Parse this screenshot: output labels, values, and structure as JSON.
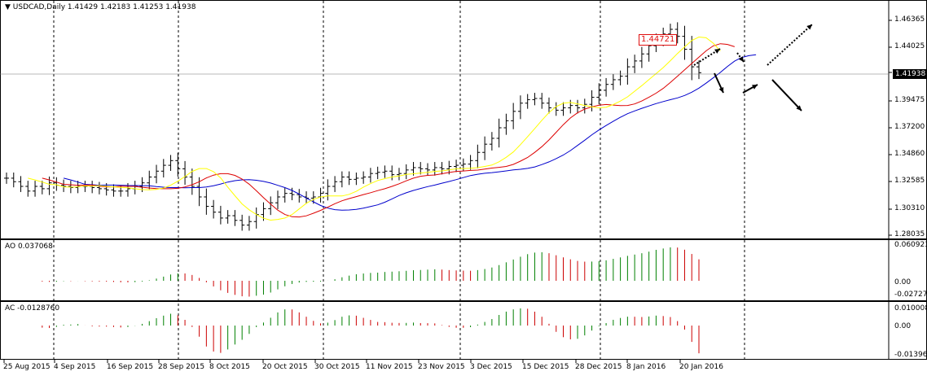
{
  "header": {
    "menu_glyph": "▼",
    "title": "USDCAD,Daily",
    "open": "1.41429",
    "high": "1.42183",
    "low": "1.41253",
    "close": "1.41938"
  },
  "price_axis": [
    "1.46365",
    "1.44025",
    "1.41938",
    "1.39475",
    "1.37200",
    "1.34860",
    "1.32585",
    "1.30310",
    "1.28035"
  ],
  "current_price": "1.41938",
  "annotation_box": "1.44721",
  "ao": {
    "label": "AO 0.037068",
    "axis": [
      "0.060923",
      "0.00",
      "-0.027278"
    ]
  },
  "ac": {
    "label": "AC -0.0128760",
    "axis": [
      "0.010008",
      "0.00",
      "-0.013965"
    ]
  },
  "dates": [
    "25 Aug 2015",
    "4 Sep 2015",
    "16 Sep 2015",
    "28 Sep 2015",
    "8 Oct 2015",
    "20 Oct 2015",
    "30 Oct 2015",
    "11 Nov 2015",
    "23 Nov 2015",
    "3 Dec 2015",
    "15 Dec 2015",
    "28 Dec 2015",
    "8 Jan 2016",
    "20 Jan 2016"
  ],
  "colors": {
    "bar": "#000000",
    "jaw": "#0000cc",
    "teeth": "#dd0000",
    "lips": "#ffff00",
    "ao_up": "#008000",
    "ao_down": "#cc0000",
    "grid": "#000000"
  },
  "chart_data": {
    "type": "ohlc",
    "symbol": "USDCAD",
    "timeframe": "Daily",
    "ylim": [
      1.28035,
      1.46365
    ],
    "close": [
      1.329,
      1.326,
      1.322,
      1.318,
      1.322,
      1.32,
      1.325,
      1.323,
      1.322,
      1.321,
      1.322,
      1.322,
      1.321,
      1.32,
      1.319,
      1.318,
      1.318,
      1.32,
      1.322,
      1.325,
      1.33,
      1.335,
      1.34,
      1.344,
      1.337,
      1.33,
      1.322,
      1.313,
      1.305,
      1.3,
      1.295,
      1.297,
      1.293,
      1.289,
      1.292,
      1.298,
      1.303,
      1.308,
      1.313,
      1.316,
      1.315,
      1.313,
      1.312,
      1.313,
      1.316,
      1.322,
      1.326,
      1.33,
      1.328,
      1.329,
      1.33,
      1.333,
      1.334,
      1.335,
      1.332,
      1.333,
      1.336,
      1.338,
      1.337,
      1.336,
      1.338,
      1.337,
      1.339,
      1.34,
      1.341,
      1.344,
      1.351,
      1.358,
      1.363,
      1.372,
      1.378,
      1.386,
      1.393,
      1.396,
      1.397,
      1.393,
      1.389,
      1.387,
      1.389,
      1.391,
      1.389,
      1.392,
      1.398,
      1.404,
      1.409,
      1.413,
      1.416,
      1.424,
      1.429,
      1.435,
      1.442,
      1.447,
      1.452,
      1.456,
      1.45,
      1.439,
      1.424,
      1.419
    ]
  }
}
